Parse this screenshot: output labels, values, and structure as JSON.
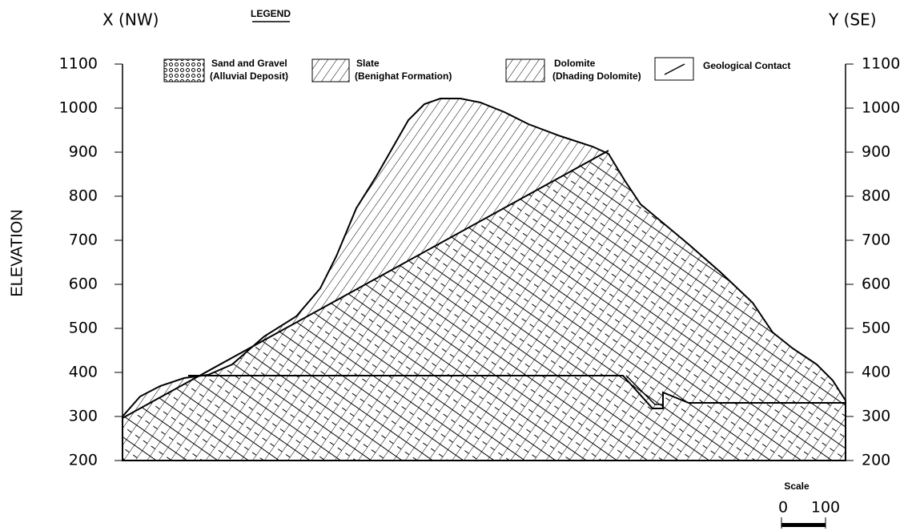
{
  "header": {
    "left": "X  (NW)",
    "right": "Y  (SE)"
  },
  "legend": {
    "title": "LEGEND",
    "items": [
      {
        "label": [
          "Sand and Gravel",
          "(Alluvial Deposit)"
        ]
      },
      {
        "label": [
          "Slate",
          "(Benighat Formation)"
        ]
      },
      {
        "label": [
          "Dolomite",
          "(Dhading Dolomite)"
        ]
      },
      {
        "label": [
          "Geological Contact"
        ]
      }
    ]
  },
  "axis": {
    "label": "ELEVATION",
    "ticks": [
      1100,
      1000,
      900,
      800,
      700,
      600,
      500,
      400,
      300,
      200
    ]
  },
  "scale": {
    "title": "Scale",
    "start": "0",
    "end": "100"
  }
}
